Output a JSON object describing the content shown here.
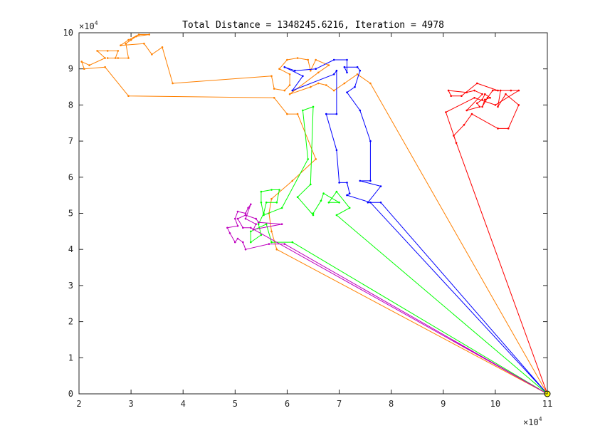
{
  "chart_data": {
    "type": "line",
    "title": "Total Distance = 1348245.6216, Iteration = 4978",
    "xlabel": "",
    "ylabel": "",
    "xlim": [
      2,
      11
    ],
    "ylim": [
      0,
      10
    ],
    "x_ticks": [
      "2",
      "3",
      "4",
      "5",
      "6",
      "7",
      "8",
      "9",
      "10",
      "11"
    ],
    "y_ticks": [
      "0",
      "1",
      "2",
      "3",
      "4",
      "5",
      "6",
      "7",
      "8",
      "9",
      "10"
    ],
    "x_exponent": {
      "base": "×10",
      "power": "4"
    },
    "y_exponent": {
      "base": "×10",
      "power": "4"
    },
    "grid": false,
    "depot": {
      "x": 11.0,
      "y": 0.0
    },
    "series": [
      {
        "color": "#ff0000",
        "points": [
          [
            11.0,
            0.0
          ],
          [
            9.2,
            7.15
          ],
          [
            9.4,
            7.45
          ],
          [
            9.55,
            7.75
          ],
          [
            10.05,
            7.35
          ],
          [
            10.25,
            7.35
          ],
          [
            10.45,
            8.0
          ],
          [
            10.2,
            8.3
          ],
          [
            10.05,
            7.95
          ],
          [
            10.1,
            8.4
          ],
          [
            9.95,
            8.4
          ],
          [
            9.85,
            8.2
          ],
          [
            9.75,
            7.95
          ],
          [
            9.8,
            8.15
          ],
          [
            9.9,
            8.2
          ],
          [
            9.8,
            8.3
          ],
          [
            9.75,
            8.15
          ],
          [
            9.65,
            8.05
          ],
          [
            9.7,
            7.95
          ],
          [
            9.45,
            7.85
          ],
          [
            9.75,
            8.3
          ],
          [
            9.6,
            8.4
          ],
          [
            9.45,
            8.35
          ],
          [
            9.1,
            8.4
          ],
          [
            9.15,
            8.25
          ],
          [
            9.35,
            8.25
          ],
          [
            9.65,
            8.6
          ],
          [
            10.05,
            8.4
          ],
          [
            10.3,
            8.4
          ],
          [
            10.45,
            8.4
          ],
          [
            10.0,
            8.0
          ],
          [
            9.6,
            8.2
          ],
          [
            9.05,
            7.8
          ],
          [
            9.25,
            6.95
          ],
          [
            11.0,
            0.0
          ]
        ]
      },
      {
        "color": "#ff8000",
        "points": [
          [
            11.0,
            0.0
          ],
          [
            7.6,
            8.6
          ],
          [
            7.35,
            8.85
          ],
          [
            7.1,
            8.6
          ],
          [
            6.9,
            8.4
          ],
          [
            6.75,
            8.55
          ],
          [
            6.6,
            8.6
          ],
          [
            6.45,
            8.5
          ],
          [
            6.05,
            8.3
          ],
          [
            6.6,
            8.9
          ],
          [
            6.8,
            9.1
          ],
          [
            6.55,
            9.25
          ],
          [
            6.45,
            8.95
          ],
          [
            6.4,
            9.25
          ],
          [
            6.2,
            9.3
          ],
          [
            6.0,
            9.25
          ],
          [
            5.85,
            9.0
          ],
          [
            6.05,
            8.85
          ],
          [
            6.05,
            8.55
          ],
          [
            5.95,
            8.4
          ],
          [
            5.75,
            8.45
          ],
          [
            5.7,
            8.8
          ],
          [
            3.8,
            8.6
          ],
          [
            3.6,
            9.6
          ],
          [
            3.4,
            9.4
          ],
          [
            3.25,
            9.7
          ],
          [
            2.8,
            9.65
          ],
          [
            2.95,
            9.8
          ],
          [
            3.15,
            9.95
          ],
          [
            3.35,
            9.95
          ],
          [
            3.1,
            9.9
          ],
          [
            3.0,
            9.8
          ],
          [
            2.9,
            9.7
          ],
          [
            2.95,
            9.3
          ],
          [
            2.75,
            9.3
          ],
          [
            2.55,
            9.3
          ],
          [
            2.7,
            9.3
          ],
          [
            2.75,
            9.5
          ],
          [
            2.55,
            9.5
          ],
          [
            2.35,
            9.5
          ],
          [
            2.5,
            9.3
          ],
          [
            2.2,
            9.1
          ],
          [
            2.05,
            9.2
          ],
          [
            2.1,
            9.0
          ],
          [
            2.5,
            9.05
          ],
          [
            2.95,
            8.25
          ],
          [
            5.75,
            8.2
          ],
          [
            6.0,
            7.75
          ],
          [
            6.2,
            7.75
          ],
          [
            6.55,
            6.5
          ],
          [
            6.1,
            5.9
          ],
          [
            5.7,
            5.4
          ],
          [
            5.65,
            5.0
          ],
          [
            5.7,
            4.5
          ],
          [
            5.8,
            4.0
          ],
          [
            11.0,
            0.0
          ]
        ]
      },
      {
        "color": "#0000ff",
        "points": [
          [
            11.0,
            0.0
          ],
          [
            7.8,
            5.3
          ],
          [
            7.55,
            5.3
          ],
          [
            7.8,
            5.75
          ],
          [
            7.4,
            5.9
          ],
          [
            7.6,
            5.9
          ],
          [
            7.6,
            7.0
          ],
          [
            7.4,
            7.85
          ],
          [
            7.15,
            8.35
          ],
          [
            7.3,
            8.5
          ],
          [
            7.4,
            8.95
          ],
          [
            7.35,
            9.05
          ],
          [
            7.1,
            9.05
          ],
          [
            7.15,
            8.9
          ],
          [
            7.15,
            9.25
          ],
          [
            6.9,
            9.25
          ],
          [
            6.55,
            9.0
          ],
          [
            6.15,
            8.95
          ],
          [
            5.95,
            9.05
          ],
          [
            6.3,
            8.8
          ],
          [
            6.1,
            8.4
          ],
          [
            6.9,
            8.85
          ],
          [
            6.95,
            8.95
          ],
          [
            6.95,
            7.75
          ],
          [
            6.75,
            7.75
          ],
          [
            6.95,
            6.75
          ],
          [
            7.0,
            5.85
          ],
          [
            7.15,
            5.85
          ],
          [
            7.2,
            5.55
          ],
          [
            7.15,
            5.5
          ],
          [
            7.6,
            5.3
          ],
          [
            11.0,
            0.0
          ]
        ]
      },
      {
        "color": "#00ff00",
        "points": [
          [
            11.0,
            0.0
          ],
          [
            6.95,
            4.95
          ],
          [
            7.2,
            5.15
          ],
          [
            6.95,
            5.6
          ],
          [
            6.8,
            5.3
          ],
          [
            7.0,
            5.3
          ],
          [
            6.7,
            5.55
          ],
          [
            6.65,
            5.35
          ],
          [
            6.5,
            5.0
          ],
          [
            6.5,
            4.95
          ],
          [
            6.2,
            5.45
          ],
          [
            6.45,
            5.8
          ],
          [
            6.5,
            7.95
          ],
          [
            6.3,
            7.85
          ],
          [
            6.4,
            6.5
          ],
          [
            5.9,
            5.15
          ],
          [
            5.55,
            4.95
          ],
          [
            5.5,
            5.3
          ],
          [
            5.5,
            5.6
          ],
          [
            5.7,
            5.65
          ],
          [
            5.85,
            5.65
          ],
          [
            5.8,
            5.3
          ],
          [
            5.6,
            5.3
          ],
          [
            5.55,
            5.0
          ],
          [
            5.45,
            4.7
          ],
          [
            5.5,
            4.4
          ],
          [
            5.3,
            4.2
          ],
          [
            5.3,
            4.5
          ],
          [
            5.6,
            4.7
          ],
          [
            5.7,
            4.2
          ],
          [
            6.1,
            4.2
          ],
          [
            11.0,
            0.0
          ]
        ]
      },
      {
        "color": "#bf00bf",
        "points": [
          [
            11.0,
            0.0
          ],
          [
            5.95,
            4.15
          ],
          [
            5.65,
            4.15
          ],
          [
            5.2,
            4.0
          ],
          [
            5.15,
            4.2
          ],
          [
            5.05,
            4.3
          ],
          [
            5.0,
            4.2
          ],
          [
            4.9,
            4.45
          ],
          [
            4.85,
            4.6
          ],
          [
            5.05,
            4.65
          ],
          [
            5.0,
            4.85
          ],
          [
            5.05,
            5.05
          ],
          [
            5.2,
            5.0
          ],
          [
            5.25,
            5.15
          ],
          [
            5.3,
            5.25
          ],
          [
            5.2,
            4.85
          ],
          [
            5.4,
            4.7
          ],
          [
            5.35,
            4.55
          ],
          [
            5.9,
            4.7
          ],
          [
            5.45,
            4.75
          ],
          [
            5.4,
            4.85
          ],
          [
            5.2,
            4.95
          ],
          [
            5.05,
            4.85
          ],
          [
            5.15,
            4.6
          ],
          [
            5.3,
            4.6
          ],
          [
            11.0,
            0.0
          ]
        ]
      }
    ]
  }
}
